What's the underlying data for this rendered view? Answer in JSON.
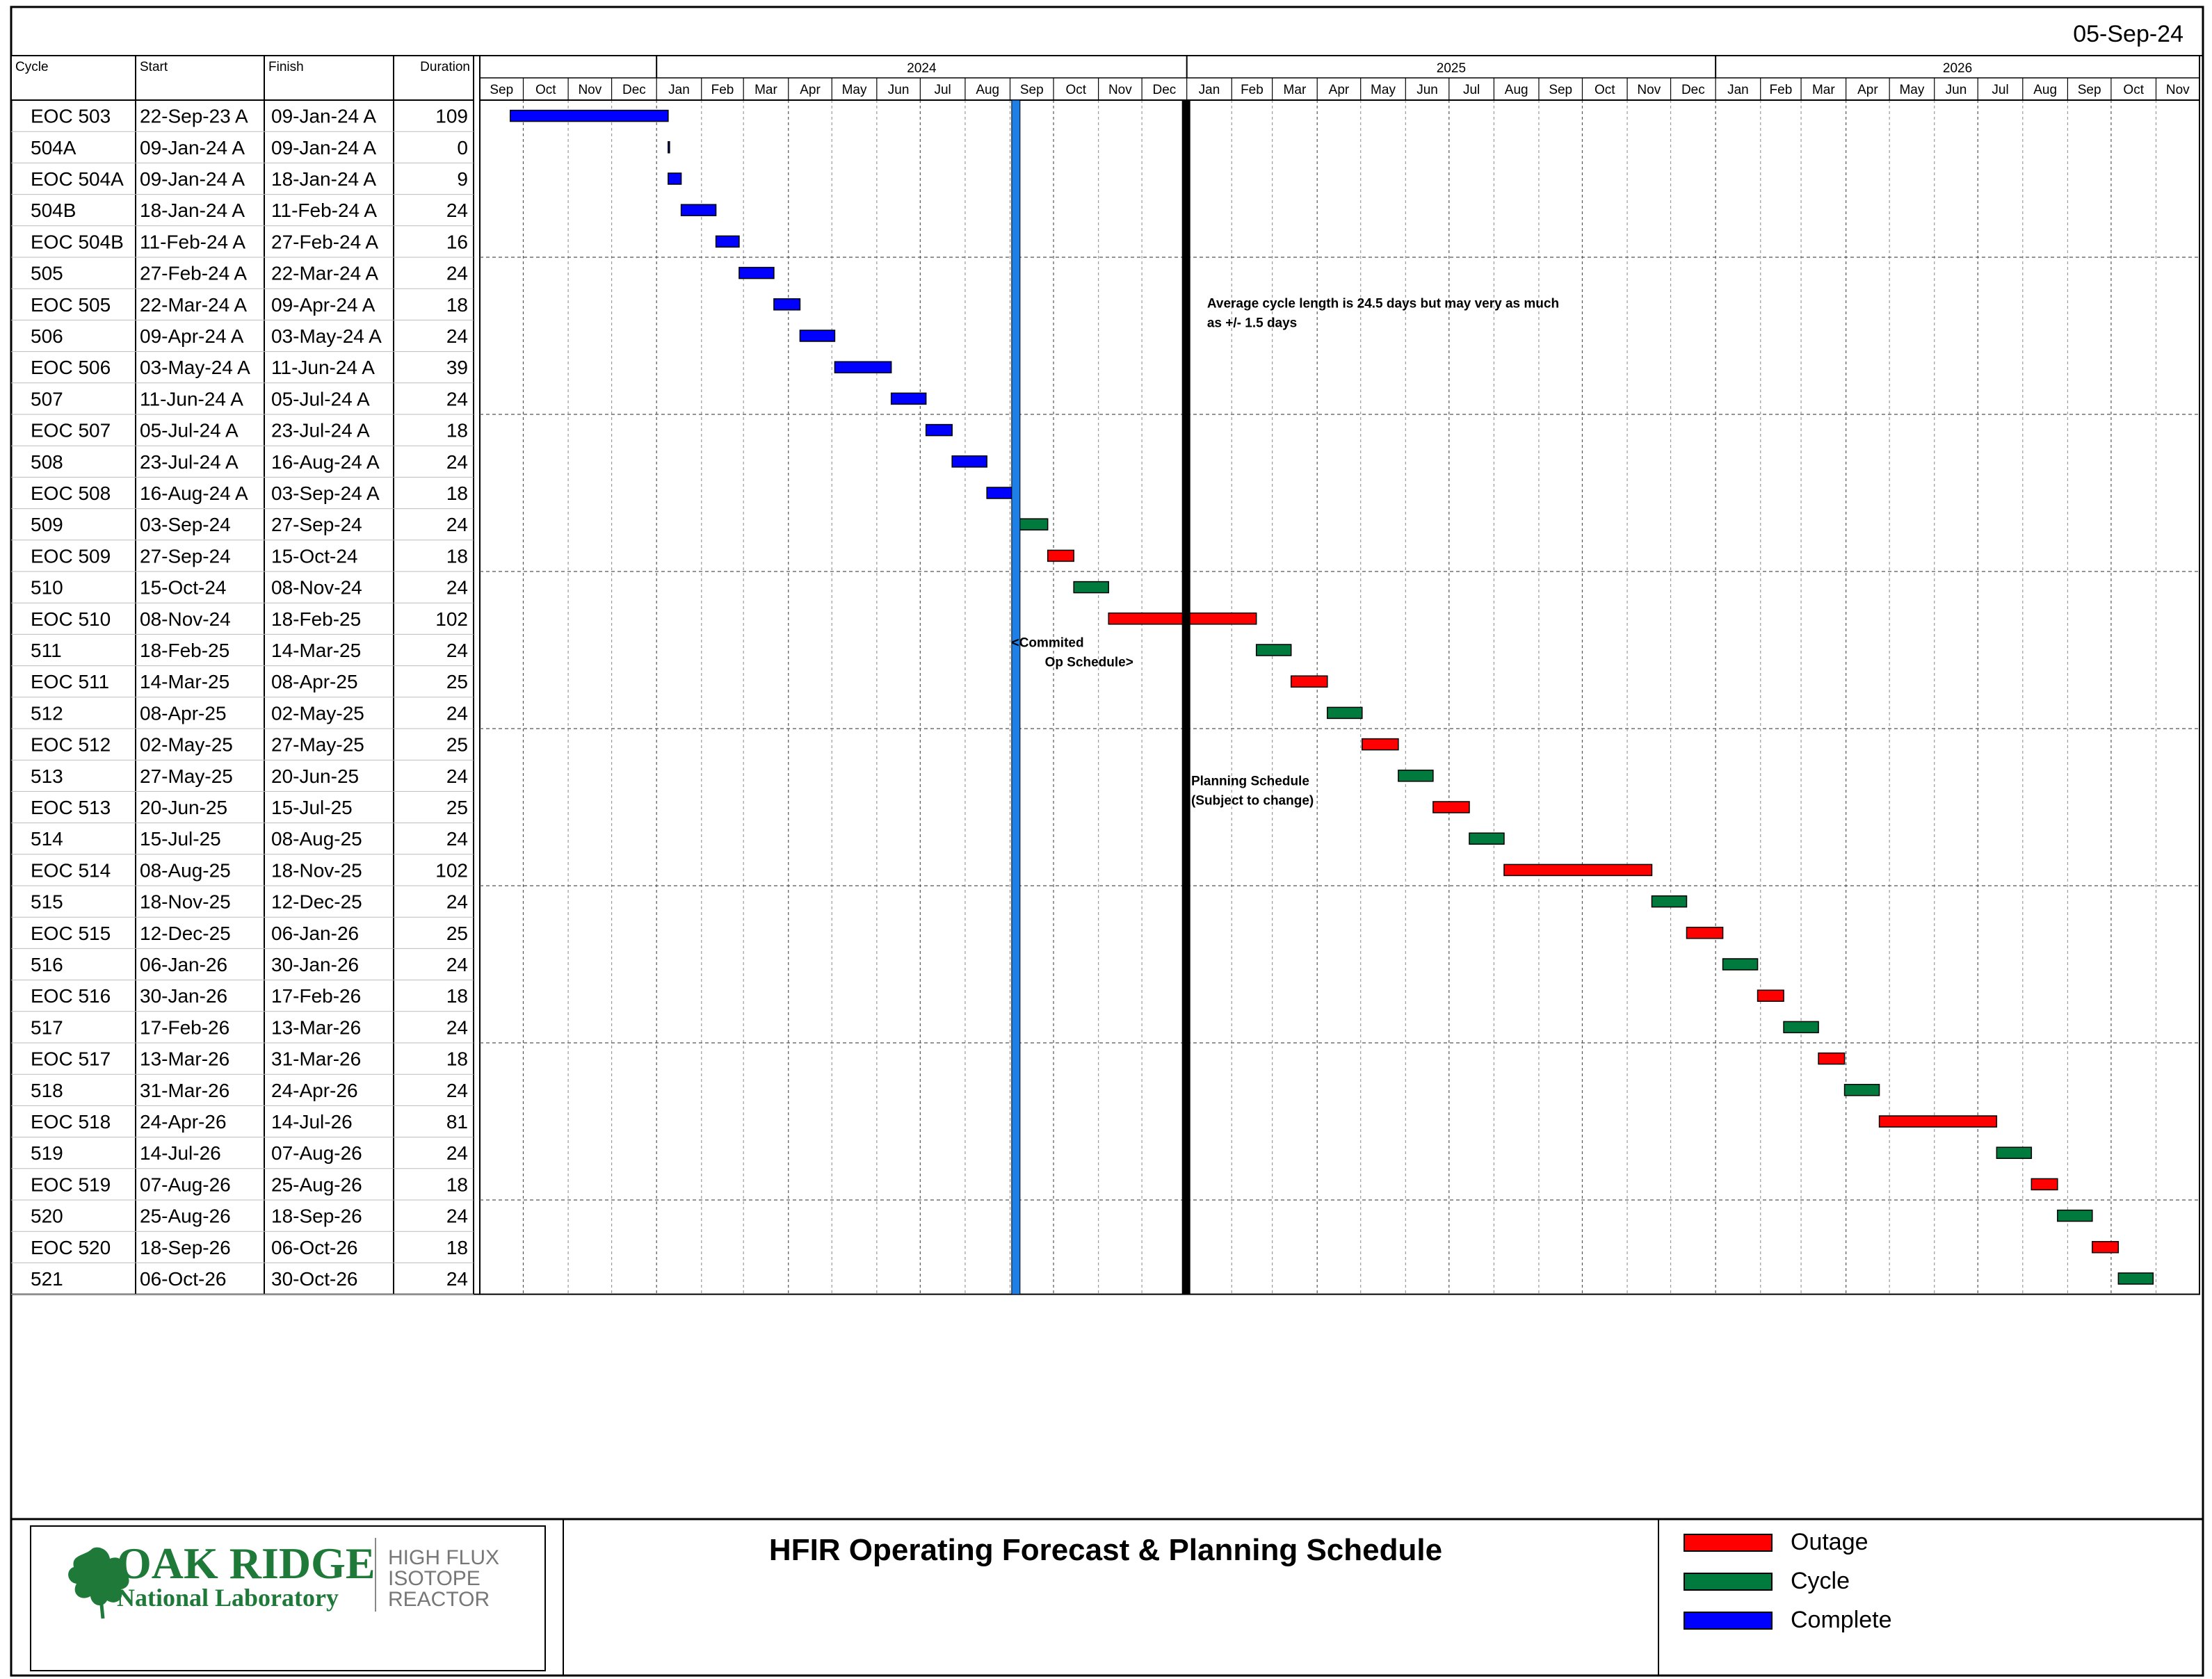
{
  "report_date": "05-Sep-24",
  "footer": {
    "title": "HFIR Operating Forecast & Planning Schedule",
    "logo_main": "OAK RIDGE",
    "logo_sub": "National Laboratory",
    "logo_right": [
      "HIGH FLUX",
      "ISOTOPE",
      "REACTOR"
    ]
  },
  "chart_data": {
    "type": "gantt",
    "table_headers": {
      "cycle": "Cycle",
      "start": "Start",
      "finish": "Finish",
      "duration": "Duration"
    },
    "years": [
      "2024",
      "2025",
      "2026"
    ],
    "months": [
      "Sep",
      "Oct",
      "Nov",
      "Dec",
      "Jan",
      "Feb",
      "Mar",
      "Apr",
      "May",
      "Jun",
      "Jul",
      "Aug",
      "Sep",
      "Oct",
      "Nov",
      "Dec",
      "Jan",
      "Feb",
      "Mar",
      "Apr",
      "May",
      "Jun",
      "Jul",
      "Aug",
      "Sep",
      "Oct",
      "Nov",
      "Dec",
      "Jan",
      "Feb",
      "Mar",
      "Apr",
      "May",
      "Jun",
      "Jul",
      "Aug",
      "Sep",
      "Oct",
      "Nov"
    ],
    "timeline_start": "2023-09-01",
    "timeline_end": "2026-11-30",
    "status_colors": {
      "complete": "#0000ff",
      "cycle": "#007a3d",
      "outage": "#ff0000"
    },
    "status_line": {
      "date": "2024-09-05",
      "color": "#1e7fe6"
    },
    "committed_line": {
      "date": "2024-12-31",
      "color": "#000000"
    },
    "legend": [
      {
        "label": "Outage",
        "status": "outage"
      },
      {
        "label": "Cycle",
        "status": "cycle"
      },
      {
        "label": "Complete",
        "status": "complete"
      }
    ],
    "annotations": [
      {
        "text": [
          "Average cycle length is 24.5 days but may very as much",
          "as +/- 1.5 days"
        ],
        "at": "2025-01-15",
        "row": 6.6
      },
      {
        "text": [
          "<Commited",
          "Op Schedule>"
        ],
        "at": "2024-09-02",
        "row": 17.4
      },
      {
        "text": [
          "Planning Schedule",
          "(Subject to change)"
        ],
        "at": "2025-01-04",
        "row": 21.8
      }
    ],
    "rows": [
      {
        "cycle": "EOC 503",
        "start": "22-Sep-23 A",
        "finish": "09-Jan-24 A",
        "duration": 109,
        "s": "2023-09-22",
        "f": "2024-01-09",
        "status": "complete"
      },
      {
        "cycle": "504A",
        "start": "09-Jan-24 A",
        "finish": "09-Jan-24 A",
        "duration": 0,
        "s": "2024-01-09",
        "f": "2024-01-09",
        "status": "complete"
      },
      {
        "cycle": "EOC 504A",
        "start": "09-Jan-24 A",
        "finish": "18-Jan-24 A",
        "duration": 9,
        "s": "2024-01-09",
        "f": "2024-01-18",
        "status": "complete"
      },
      {
        "cycle": "504B",
        "start": "18-Jan-24 A",
        "finish": "11-Feb-24 A",
        "duration": 24,
        "s": "2024-01-18",
        "f": "2024-02-11",
        "status": "complete"
      },
      {
        "cycle": "EOC 504B",
        "start": "11-Feb-24 A",
        "finish": "27-Feb-24 A",
        "duration": 16,
        "s": "2024-02-11",
        "f": "2024-02-27",
        "status": "complete"
      },
      {
        "cycle": "505",
        "start": "27-Feb-24 A",
        "finish": "22-Mar-24 A",
        "duration": 24,
        "s": "2024-02-27",
        "f": "2024-03-22",
        "status": "complete"
      },
      {
        "cycle": "EOC 505",
        "start": "22-Mar-24 A",
        "finish": "09-Apr-24 A",
        "duration": 18,
        "s": "2024-03-22",
        "f": "2024-04-09",
        "status": "complete"
      },
      {
        "cycle": "506",
        "start": "09-Apr-24 A",
        "finish": "03-May-24 A",
        "duration": 24,
        "s": "2024-04-09",
        "f": "2024-05-03",
        "status": "complete"
      },
      {
        "cycle": "EOC 506",
        "start": "03-May-24 A",
        "finish": "11-Jun-24 A",
        "duration": 39,
        "s": "2024-05-03",
        "f": "2024-06-11",
        "status": "complete"
      },
      {
        "cycle": "507",
        "start": "11-Jun-24 A",
        "finish": "05-Jul-24 A",
        "duration": 24,
        "s": "2024-06-11",
        "f": "2024-07-05",
        "status": "complete"
      },
      {
        "cycle": "EOC 507",
        "start": "05-Jul-24 A",
        "finish": "23-Jul-24 A",
        "duration": 18,
        "s": "2024-07-05",
        "f": "2024-07-23",
        "status": "complete"
      },
      {
        "cycle": "508",
        "start": "23-Jul-24 A",
        "finish": "16-Aug-24 A",
        "duration": 24,
        "s": "2024-07-23",
        "f": "2024-08-16",
        "status": "complete"
      },
      {
        "cycle": "EOC 508",
        "start": "16-Aug-24 A",
        "finish": "03-Sep-24 A",
        "duration": 18,
        "s": "2024-08-16",
        "f": "2024-09-03",
        "status": "complete"
      },
      {
        "cycle": "509",
        "start": "03-Sep-24",
        "finish": "27-Sep-24",
        "duration": 24,
        "s": "2024-09-03",
        "f": "2024-09-27",
        "status": "cycle"
      },
      {
        "cycle": "EOC 509",
        "start": "27-Sep-24",
        "finish": "15-Oct-24",
        "duration": 18,
        "s": "2024-09-27",
        "f": "2024-10-15",
        "status": "outage"
      },
      {
        "cycle": "510",
        "start": "15-Oct-24",
        "finish": "08-Nov-24",
        "duration": 24,
        "s": "2024-10-15",
        "f": "2024-11-08",
        "status": "cycle"
      },
      {
        "cycle": "EOC 510",
        "start": "08-Nov-24",
        "finish": "18-Feb-25",
        "duration": 102,
        "s": "2024-11-08",
        "f": "2025-02-18",
        "status": "outage"
      },
      {
        "cycle": "511",
        "start": "18-Feb-25",
        "finish": "14-Mar-25",
        "duration": 24,
        "s": "2025-02-18",
        "f": "2025-03-14",
        "status": "cycle"
      },
      {
        "cycle": "EOC 511",
        "start": "14-Mar-25",
        "finish": "08-Apr-25",
        "duration": 25,
        "s": "2025-03-14",
        "f": "2025-04-08",
        "status": "outage"
      },
      {
        "cycle": "512",
        "start": "08-Apr-25",
        "finish": "02-May-25",
        "duration": 24,
        "s": "2025-04-08",
        "f": "2025-05-02",
        "status": "cycle"
      },
      {
        "cycle": "EOC 512",
        "start": "02-May-25",
        "finish": "27-May-25",
        "duration": 25,
        "s": "2025-05-02",
        "f": "2025-05-27",
        "status": "outage"
      },
      {
        "cycle": "513",
        "start": "27-May-25",
        "finish": "20-Jun-25",
        "duration": 24,
        "s": "2025-05-27",
        "f": "2025-06-20",
        "status": "cycle"
      },
      {
        "cycle": "EOC 513",
        "start": "20-Jun-25",
        "finish": "15-Jul-25",
        "duration": 25,
        "s": "2025-06-20",
        "f": "2025-07-15",
        "status": "outage"
      },
      {
        "cycle": "514",
        "start": "15-Jul-25",
        "finish": "08-Aug-25",
        "duration": 24,
        "s": "2025-07-15",
        "f": "2025-08-08",
        "status": "cycle"
      },
      {
        "cycle": "EOC 514",
        "start": "08-Aug-25",
        "finish": "18-Nov-25",
        "duration": 102,
        "s": "2025-08-08",
        "f": "2025-11-18",
        "status": "outage"
      },
      {
        "cycle": "515",
        "start": "18-Nov-25",
        "finish": "12-Dec-25",
        "duration": 24,
        "s": "2025-11-18",
        "f": "2025-12-12",
        "status": "cycle"
      },
      {
        "cycle": "EOC 515",
        "start": "12-Dec-25",
        "finish": "06-Jan-26",
        "duration": 25,
        "s": "2025-12-12",
        "f": "2026-01-06",
        "status": "outage"
      },
      {
        "cycle": "516",
        "start": "06-Jan-26",
        "finish": "30-Jan-26",
        "duration": 24,
        "s": "2026-01-06",
        "f": "2026-01-30",
        "status": "cycle"
      },
      {
        "cycle": "EOC 516",
        "start": "30-Jan-26",
        "finish": "17-Feb-26",
        "duration": 18,
        "s": "2026-01-30",
        "f": "2026-02-17",
        "status": "outage"
      },
      {
        "cycle": "517",
        "start": "17-Feb-26",
        "finish": "13-Mar-26",
        "duration": 24,
        "s": "2026-02-17",
        "f": "2026-03-13",
        "status": "cycle"
      },
      {
        "cycle": "EOC 517",
        "start": "13-Mar-26",
        "finish": "31-Mar-26",
        "duration": 18,
        "s": "2026-03-13",
        "f": "2026-03-31",
        "status": "outage"
      },
      {
        "cycle": "518",
        "start": "31-Mar-26",
        "finish": "24-Apr-26",
        "duration": 24,
        "s": "2026-03-31",
        "f": "2026-04-24",
        "status": "cycle"
      },
      {
        "cycle": "EOC 518",
        "start": "24-Apr-26",
        "finish": "14-Jul-26",
        "duration": 81,
        "s": "2026-04-24",
        "f": "2026-07-14",
        "status": "outage"
      },
      {
        "cycle": "519",
        "start": "14-Jul-26",
        "finish": "07-Aug-26",
        "duration": 24,
        "s": "2026-07-14",
        "f": "2026-08-07",
        "status": "cycle"
      },
      {
        "cycle": "EOC 519",
        "start": "07-Aug-26",
        "finish": "25-Aug-26",
        "duration": 18,
        "s": "2026-08-07",
        "f": "2026-08-25",
        "status": "outage"
      },
      {
        "cycle": "520",
        "start": "25-Aug-26",
        "finish": "18-Sep-26",
        "duration": 24,
        "s": "2026-08-25",
        "f": "2026-09-18",
        "status": "cycle"
      },
      {
        "cycle": "EOC 520",
        "start": "18-Sep-26",
        "finish": "06-Oct-26",
        "duration": 18,
        "s": "2026-09-18",
        "f": "2026-10-06",
        "status": "outage"
      },
      {
        "cycle": "521",
        "start": "06-Oct-26",
        "finish": "30-Oct-26",
        "duration": 24,
        "s": "2026-10-06",
        "f": "2026-10-30",
        "status": "cycle"
      }
    ]
  }
}
